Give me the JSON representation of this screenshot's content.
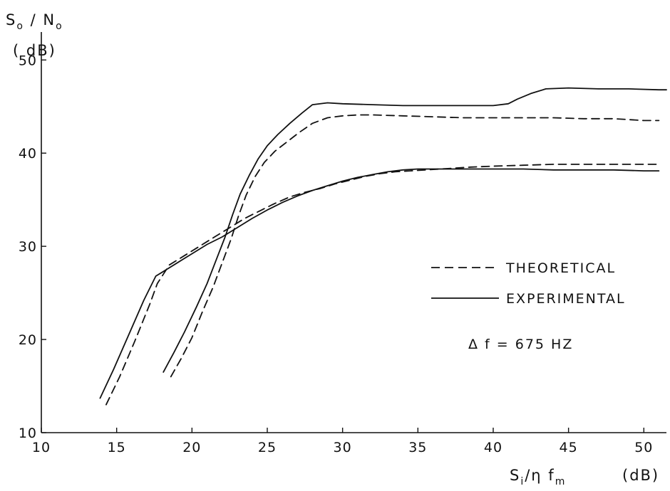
{
  "chart_data": {
    "type": "line",
    "xlim": [
      10,
      51.5
    ],
    "ylim": [
      10,
      53
    ],
    "x_ticks": [
      10,
      15,
      20,
      25,
      30,
      35,
      40,
      45,
      50
    ],
    "y_ticks": [
      10,
      20,
      30,
      40,
      50
    ],
    "x_tick_labels": [
      "10",
      "15",
      "20",
      "25",
      "30",
      "35",
      "40",
      "45",
      "50"
    ],
    "y_tick_labels": [
      "10",
      "20",
      "30",
      "40",
      "50"
    ],
    "grid": false,
    "legend_position": "center-right",
    "ylabel": {
      "s": "S",
      "s_sub": "o",
      "slash": " / ",
      "n": "N",
      "n_sub": "o",
      "unit": "( dB)"
    },
    "xlabel": {
      "s": "S",
      "s_sub": "i",
      "rest": "/η f",
      "rest_sub": "m",
      "unit": "(dB)"
    },
    "legend": [
      {
        "label": "THEORETICAL",
        "style": "dashed"
      },
      {
        "label": "EXPERIMENTAL",
        "style": "solid"
      }
    ],
    "annotation": "Δ f = 675 HZ",
    "series": [
      {
        "style": "solid",
        "x": [
          13.9,
          14.8,
          15.8,
          16.8,
          17.6,
          18.0,
          19.0,
          20.0,
          21.0,
          22.0,
          23.0,
          24.0,
          25.0,
          26.0,
          27.0,
          28.0,
          29.0,
          30.0,
          31.0,
          32.0,
          33.0,
          34.0,
          35.0,
          36.0,
          37.0,
          38.0,
          39.0,
          40.0,
          42.0,
          44.0,
          46.0,
          48.0,
          50.0,
          51.0
        ],
        "y": [
          13.7,
          16.8,
          20.5,
          24.2,
          26.8,
          27.2,
          28.2,
          29.2,
          30.2,
          31.0,
          32.0,
          33.0,
          33.9,
          34.7,
          35.4,
          36.0,
          36.5,
          37.0,
          37.4,
          37.7,
          38.0,
          38.2,
          38.3,
          38.3,
          38.3,
          38.3,
          38.3,
          38.3,
          38.3,
          38.2,
          38.2,
          38.2,
          38.1,
          38.1
        ]
      },
      {
        "style": "dashed",
        "x": [
          14.3,
          15.2,
          16.2,
          17.2,
          17.7,
          18.5,
          19.5,
          20.5,
          21.5,
          22.5,
          23.5,
          24.5,
          25.5,
          26.5,
          27.5,
          28.5,
          29.5,
          30.5,
          31.5,
          32.5,
          33.5,
          34.5,
          35.5,
          36.5,
          37.5,
          38.5,
          40.0,
          42.0,
          44.0,
          46.0,
          48.0,
          50.0,
          51.0
        ],
        "y": [
          13.0,
          16.0,
          19.8,
          23.8,
          26.0,
          28.0,
          29.0,
          30.0,
          31.0,
          32.0,
          33.0,
          33.8,
          34.6,
          35.3,
          35.8,
          36.2,
          36.7,
          37.1,
          37.5,
          37.8,
          38.0,
          38.1,
          38.2,
          38.3,
          38.4,
          38.5,
          38.6,
          38.7,
          38.8,
          38.8,
          38.8,
          38.8,
          38.8
        ]
      },
      {
        "style": "solid",
        "x": [
          18.1,
          18.8,
          19.5,
          20.3,
          21.0,
          21.6,
          22.2,
          22.7,
          23.2,
          23.8,
          24.4,
          25.0,
          25.7,
          26.5,
          27.3,
          28.0,
          29.0,
          30.0,
          32.0,
          34.0,
          36.0,
          38.0,
          40.0,
          41.0,
          41.6,
          42.5,
          43.5,
          45.0,
          47.0,
          49.0,
          51.0,
          51.5
        ],
        "y": [
          16.5,
          18.6,
          20.8,
          23.5,
          26.0,
          28.5,
          31.0,
          33.4,
          35.6,
          37.6,
          39.4,
          40.8,
          42.0,
          43.2,
          44.3,
          45.2,
          45.4,
          45.3,
          45.2,
          45.1,
          45.1,
          45.1,
          45.1,
          45.3,
          45.8,
          46.4,
          46.9,
          47.0,
          46.9,
          46.9,
          46.8,
          46.8
        ]
      },
      {
        "style": "dashed",
        "x": [
          18.6,
          19.3,
          20.0,
          20.7,
          21.4,
          22.0,
          22.6,
          23.1,
          23.6,
          24.2,
          24.8,
          25.5,
          26.3,
          27.1,
          28.0,
          29.0,
          30.0,
          31.0,
          32.0,
          34.0,
          36.0,
          38.0,
          40.0,
          42.0,
          44.0,
          46.0,
          48.0,
          50.0,
          51.0
        ],
        "y": [
          16.0,
          18.0,
          20.2,
          23.0,
          25.6,
          28.2,
          30.8,
          33.3,
          35.5,
          37.5,
          39.0,
          40.2,
          41.2,
          42.2,
          43.2,
          43.8,
          44.0,
          44.1,
          44.1,
          44.0,
          43.9,
          43.8,
          43.8,
          43.8,
          43.8,
          43.7,
          43.7,
          43.5,
          43.5
        ]
      }
    ]
  }
}
